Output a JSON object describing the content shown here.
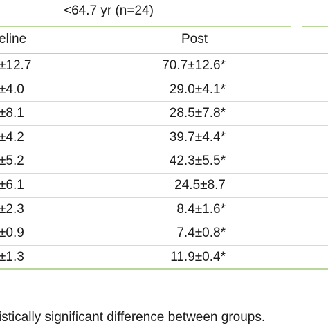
{
  "table": {
    "group_label": "<64.7 yr (n=24)",
    "columns": {
      "baseline": "eline",
      "post": "Post"
    },
    "rows": [
      {
        "baseline": "±12.7",
        "post": "70.7±12.6*"
      },
      {
        "baseline": "±4.0",
        "post": "29.0±4.1*"
      },
      {
        "baseline": "±8.1",
        "post": "28.5±7.8*"
      },
      {
        "baseline": "±4.2",
        "post": "39.7±4.4*"
      },
      {
        "baseline": "±5.2",
        "post": "42.3±5.5*"
      },
      {
        "baseline": "±6.1",
        "post": "24.5±8.7"
      },
      {
        "baseline": "±2.3",
        "post": "8.4±1.6*"
      },
      {
        "baseline": "±0.9",
        "post": "7.4±0.8*"
      },
      {
        "baseline": "±1.3",
        "post": "11.9±0.4*"
      }
    ],
    "footnote": "istically significant difference between groups."
  },
  "colors": {
    "rule": "#b9d79a",
    "text": "#1a1a1a"
  }
}
